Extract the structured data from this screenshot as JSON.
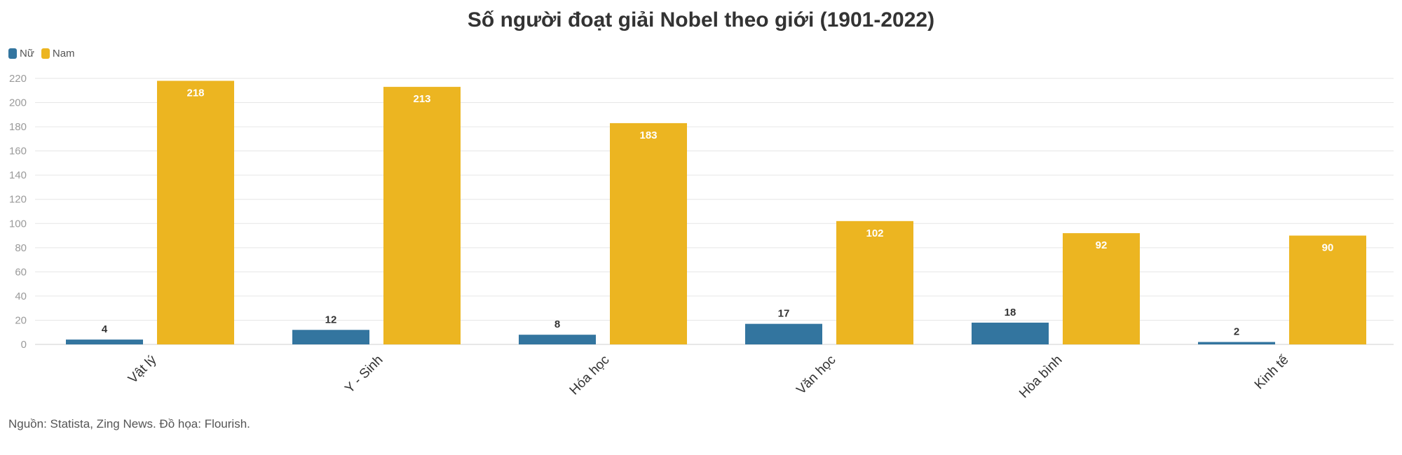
{
  "chart_data": {
    "type": "bar",
    "title": "Số người đoạt giải Nobel theo giới (1901-2022)",
    "categories": [
      "Vật lý",
      "Y - Sinh",
      "Hóa học",
      "Văn học",
      "Hòa bình",
      "Kinh tế"
    ],
    "series": [
      {
        "name": "Nữ",
        "values": [
          4,
          12,
          8,
          17,
          18,
          2
        ],
        "color": "#33759f"
      },
      {
        "name": "Nam",
        "values": [
          218,
          213,
          183,
          102,
          92,
          90
        ],
        "color": "#ecb521"
      }
    ],
    "ylim": [
      0,
      220
    ],
    "yticks": [
      0,
      20,
      40,
      60,
      80,
      100,
      120,
      140,
      160,
      180,
      200,
      220
    ],
    "grid": true,
    "legend_position": "top-left",
    "source": "Nguồn: Statista, Zing News. Đồ họa: Flourish."
  }
}
